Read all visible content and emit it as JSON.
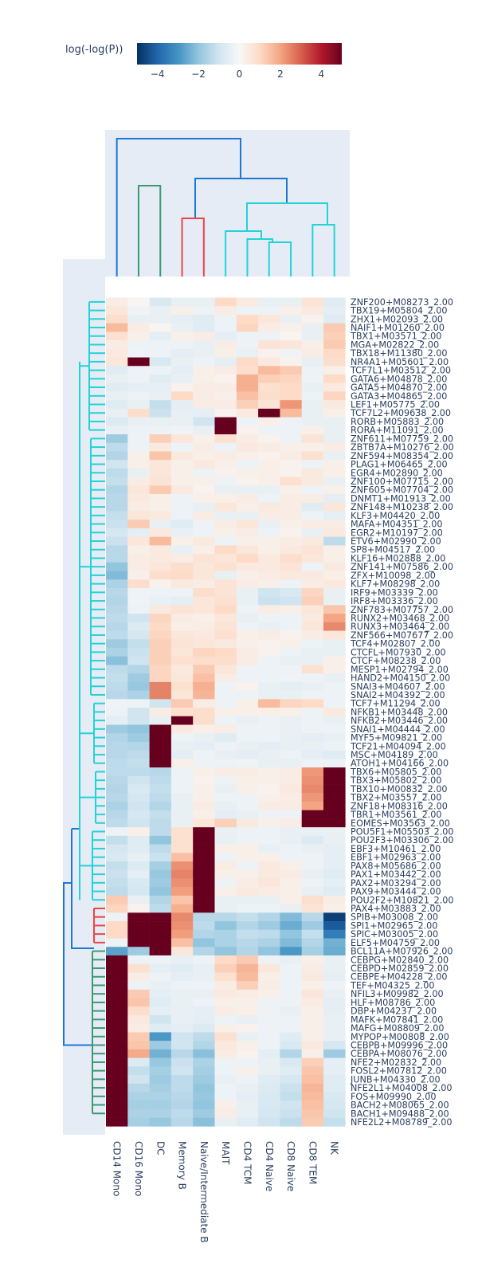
{
  "chart_data": {
    "type": "heatmap",
    "colorbar": {
      "title": "log(-log(P))",
      "range": [
        -5,
        5
      ],
      "ticks": [
        -4,
        -2,
        0,
        2,
        4
      ],
      "tick_labels": [
        "−4",
        "−2",
        "0",
        "2",
        "4"
      ],
      "colorscale": "RdBu_r",
      "colors": [
        "#053061",
        "#2166ac",
        "#4393c3",
        "#92c5de",
        "#d1e5f0",
        "#f7f7f7",
        "#fddbc7",
        "#f4a582",
        "#d6604d",
        "#b2182b",
        "#67001f"
      ]
    },
    "columns": [
      "CD14 Mono",
      "CD16 Mono",
      "DC",
      "Memory B",
      "Naive/Intermediate B",
      "MAIT",
      "CD4 TCM",
      "CD4 Naive",
      "CD8 Naive",
      "CD8 TEM",
      "NK"
    ],
    "rows": [
      "ZNF200+M08273_2.00",
      "TBX19+M05804_2.00",
      "ZHX1+M02093_2.00",
      "NAIF1+M01260_2.00",
      "TBX1+M03571_2.00",
      "MGA+M02822_2.00",
      "TBX18+M11380_2.00",
      "NR4A1+M05601_2.00",
      "TCF7L1+M03512_2.00",
      "GATA6+M04878_2.00",
      "GATA5+M04870_2.00",
      "GATA3+M04865_2.00",
      "LEF1+M05775_2.00",
      "TCF7L2+M09638_2.00",
      "RORB+M05883_2.00",
      "RORA+M11091_2.00",
      "ZNF611+M07759_2.00",
      "ZBTB7A+M10276_2.00",
      "ZNF594+M08354_2.00",
      "PLAG1+M06465_2.00",
      "EGR4+M02890_2.00",
      "ZNF100+M07715_2.00",
      "ZNF605+M07704_2.00",
      "DNMT1+M01913_2.00",
      "ZNF148+M10238_2.00",
      "KLF3+M04420_2.00",
      "MAFA+M04351_2.00",
      "EGR2+M10197_2.00",
      "ETV6+M02990_2.00",
      "SP8+M04517_2.00",
      "KLF16+M02888_2.00",
      "ZNF141+M07586_2.00",
      "ZFX+M10098_2.00",
      "KLF7+M08298_2.00",
      "IRF9+M03339_2.00",
      "IRF8+M03336_2.00",
      "ZNF783+M07757_2.00",
      "RUNX2+M03468_2.00",
      "RUNX3+M03464_2.00",
      "ZNF566+M07677_2.00",
      "TCF4+M02807_2.00",
      "CTCFL+M07930_2.00",
      "CTCF+M08238_2.00",
      "MESP1+M02794_2.00",
      "HAND2+M04150_2.00",
      "SNAI3+M04607_2.00",
      "SNAI2+M04392_2.00",
      "TCF7+M11294_2.00",
      "NFKB1+M03448_2.00",
      "NFKB2+M03446_2.00",
      "SNAI1+M04444_2.00",
      "MYF5+M09821_2.00",
      "TCF21+M04094_2.00",
      "MSC+M04189_2.00",
      "ATOH1+M04166_2.00",
      "TBX6+M05805_2.00",
      "TBX3+M05802_2.00",
      "TBX10+M00832_2.00",
      "TBX2+M03557_2.00",
      "ZNF18+M08316_2.00",
      "TBR1+M03561_2.00",
      "EOMES+M03563_2.00",
      "POU5F1+M05503_2.00",
      "POU2F3+M03306_2.00",
      "EBF3+M10461_2.00",
      "EBF1+M02963_2.00",
      "PAX8+M05686_2.00",
      "PAX1+M03442_2.00",
      "PAX2+M03294_2.00",
      "PAX9+M03444_2.00",
      "POU2F2+M10821_2.00",
      "PAX4+M03883_2.00",
      "SPIB+M03008_2.00",
      "SPI1+M02965_2.00",
      "SPIC+M03005_2.00",
      "ELF5+M04759_2.00",
      "BCL11A+M07926_2.00",
      "CEBPG+M02840_2.00",
      "CEBPD+M02859_2.00",
      "CEBPE+M04228_2.00",
      "TEF+M04325_2.00",
      "NFIL3+M09982_2.00",
      "HLF+M08786_2.00",
      "DBP+M04237_2.00",
      "MAFK+M07841_2.00",
      "MAFG+M08809_2.00",
      "MYPOP+M00808_2.00",
      "CEBPB+M09996_2.00",
      "CEBPA+M08076_2.00",
      "NFE2+M02832_2.00",
      "FOSL2+M07812_2.00",
      "JUNB+M04330_2.00",
      "NFE2L1+M04008_2.00",
      "FOS+M09990_2.00",
      "BACH2+M08065_2.00",
      "BACH1+M09488_2.00",
      "NFE2L2+M08789_2.00"
    ],
    "values": [
      [
        0.4,
        0.1,
        -0.8,
        -0.4,
        -0.4,
        1.0,
        0.5,
        -0.4,
        -0.4,
        0.7,
        -0.6
      ],
      [
        0.6,
        -0.2,
        -0.4,
        0.3,
        -0.3,
        0.4,
        -0.3,
        -0.3,
        0.3,
        0.5,
        -0.5
      ],
      [
        0.9,
        -0.4,
        -0.4,
        -0.5,
        -0.6,
        -0.3,
        1.0,
        0.6,
        -0.4,
        0.2,
        -0.6
      ],
      [
        1.6,
        0.4,
        0.1,
        -0.4,
        -0.6,
        -0.3,
        1.1,
        0.4,
        0.3,
        -0.4,
        1.3
      ],
      [
        0.8,
        0.3,
        -0.5,
        0.3,
        0.4,
        -0.5,
        -0.3,
        -0.3,
        0.1,
        -0.4,
        1.2
      ],
      [
        0.4,
        -0.3,
        -0.3,
        -0.3,
        -0.4,
        0.4,
        -0.3,
        0.7,
        0.6,
        0.3,
        1.3
      ],
      [
        0.5,
        -0.2,
        -0.3,
        -0.5,
        -0.4,
        0.3,
        -0.4,
        0.2,
        -0.2,
        0.4,
        1.0
      ],
      [
        0.6,
        5.0,
        -0.8,
        -0.4,
        -0.3,
        -0.5,
        1.0,
        0.5,
        0.2,
        -0.4,
        0.9
      ],
      [
        -0.6,
        -0.3,
        -0.3,
        -0.5,
        0.3,
        0.4,
        0.9,
        1.6,
        1.3,
        -0.3,
        0.3
      ],
      [
        -0.4,
        -0.3,
        -0.6,
        -0.4,
        0.3,
        0.2,
        1.8,
        1.2,
        1.1,
        -0.3,
        1.0
      ],
      [
        -0.6,
        -0.5,
        -0.5,
        0.2,
        0.4,
        0.4,
        1.8,
        0.8,
        1.0,
        -0.4,
        0.5
      ],
      [
        -0.4,
        -0.3,
        -0.4,
        1.0,
        0.4,
        0.3,
        1.5,
        0.9,
        1.0,
        -0.3,
        1.1
      ],
      [
        -0.6,
        -0.4,
        -1.2,
        -0.5,
        0.4,
        0.4,
        1.2,
        0.7,
        2.2,
        -0.4,
        0.5
      ],
      [
        -0.4,
        0.9,
        -1.1,
        -0.4,
        -0.5,
        0.2,
        0.5,
        5.0,
        1.6,
        -0.4,
        0.3
      ],
      [
        -0.7,
        -0.4,
        -0.4,
        -0.4,
        -1.0,
        5.0,
        -0.3,
        0.3,
        -0.3,
        -0.4,
        -0.4
      ],
      [
        -0.4,
        -0.3,
        -0.3,
        -0.2,
        -0.4,
        5.0,
        0.2,
        -0.3,
        -0.3,
        0.3,
        -0.4
      ],
      [
        -1.8,
        -0.3,
        1.2,
        0.6,
        0.3,
        0.8,
        0.4,
        0.2,
        -0.3,
        0.7,
        -0.4
      ],
      [
        -1.3,
        -0.3,
        0.5,
        -0.3,
        0.4,
        -0.3,
        0.5,
        0.4,
        0.3,
        0.3,
        0.4
      ],
      [
        -1.5,
        0.3,
        1.4,
        0.5,
        0.3,
        0.4,
        0.3,
        0.2,
        0.4,
        0.8,
        -0.4
      ],
      [
        -1.0,
        0.3,
        0.6,
        0.3,
        0.5,
        0.3,
        -0.3,
        0.3,
        0.2,
        -0.3,
        0.3
      ],
      [
        -1.3,
        -0.4,
        0.6,
        0.3,
        -0.3,
        0.2,
        0.3,
        0.3,
        0.2,
        0.5,
        0.3
      ],
      [
        -1.2,
        0.4,
        0.7,
        0.3,
        0.3,
        -0.3,
        0.2,
        0.3,
        0.8,
        0.5,
        -0.4
      ],
      [
        -1.5,
        0.6,
        1.3,
        0.5,
        0.2,
        -0.4,
        -0.4,
        -0.4,
        0.3,
        -0.3,
        0.3
      ],
      [
        -1.4,
        0.5,
        0.3,
        -0.3,
        0.3,
        0.3,
        0.4,
        -0.3,
        0.4,
        0.4,
        -0.5
      ],
      [
        -1.4,
        0.4,
        0.3,
        -0.3,
        -0.4,
        0.6,
        0.3,
        0.5,
        0.4,
        -0.6,
        0.6
      ],
      [
        -1.2,
        0.6,
        0.5,
        -0.3,
        0.4,
        -0.4,
        -0.4,
        0.4,
        0.4,
        -0.3,
        -0.5
      ],
      [
        -1.1,
        1.3,
        -0.4,
        -0.6,
        -0.3,
        0.4,
        0.6,
        -0.4,
        0.3,
        0.4,
        0.4
      ],
      [
        -0.9,
        -0.5,
        0.5,
        -0.4,
        -0.3,
        0.3,
        0.4,
        -0.3,
        0.2,
        -0.4,
        0.5
      ],
      [
        -1.1,
        0.6,
        1.6,
        0.3,
        0.5,
        -0.3,
        0.3,
        0.3,
        0.4,
        0.5,
        -1.3
      ],
      [
        -1.4,
        0.3,
        0.5,
        -0.4,
        0.3,
        1.0,
        0.6,
        0.3,
        0.5,
        0.7,
        0.3
      ],
      [
        -1.4,
        0.4,
        0.5,
        0.4,
        0.7,
        0.6,
        1.0,
        0.5,
        0.9,
        0.6,
        0.3
      ],
      [
        -2.0,
        0.4,
        0.6,
        0.9,
        0.6,
        0.8,
        0.5,
        0.5,
        0.7,
        -0.3,
        0.5
      ],
      [
        -2.2,
        0.3,
        0.9,
        1.0,
        0.6,
        -0.4,
        0.3,
        0.4,
        0.5,
        0.5,
        0.3
      ],
      [
        -1.6,
        0.9,
        0.2,
        0.5,
        0.4,
        0.7,
        0.4,
        0.3,
        -0.3,
        0.4,
        0.5
      ],
      [
        -1.4,
        -0.2,
        -0.3,
        -0.3,
        0.9,
        0.7,
        -0.4,
        -1.0,
        -0.8,
        1.1,
        -0.4
      ],
      [
        -1.5,
        -0.2,
        -0.4,
        -0.5,
        0.6,
        0.8,
        -0.4,
        -1.1,
        -1.0,
        1.2,
        -0.4
      ],
      [
        -1.4,
        -0.3,
        0.5,
        0.7,
        0.6,
        1.0,
        -0.3,
        0.4,
        0.3,
        0.6,
        1.4
      ],
      [
        -1.3,
        -1.0,
        1.1,
        0.4,
        0.3,
        0.6,
        -0.4,
        -0.3,
        -0.3,
        0.5,
        2.0
      ],
      [
        -1.4,
        -0.7,
        1.0,
        0.3,
        0.4,
        0.7,
        -0.3,
        -0.4,
        -0.3,
        0.6,
        2.4
      ],
      [
        -1.3,
        -0.9,
        1.1,
        0.6,
        0.5,
        0.8,
        0.3,
        0.4,
        0.2,
        0.4,
        0.6
      ],
      [
        -1.8,
        -1.2,
        1.2,
        0.7,
        0.6,
        0.5,
        0.3,
        0.2,
        0.3,
        -0.3,
        -0.4
      ],
      [
        -1.6,
        -1.1,
        1.2,
        0.6,
        1.1,
        1.0,
        0.4,
        0.2,
        -0.3,
        -0.4,
        -0.4
      ],
      [
        -2.1,
        -1.0,
        1.2,
        0.8,
        0.9,
        0.9,
        0.4,
        -0.3,
        -0.4,
        -0.4,
        0.3
      ],
      [
        -1.3,
        -1.5,
        1.1,
        0.5,
        1.3,
        0.6,
        -0.3,
        -0.3,
        -0.3,
        0.8,
        0.3
      ],
      [
        -1.2,
        -1.8,
        1.1,
        0.6,
        1.5,
        0.4,
        -0.3,
        -0.3,
        -0.2,
        -0.3,
        -0.4
      ],
      [
        -1.3,
        -1.9,
        2.5,
        0.8,
        1.8,
        -0.3,
        0.2,
        -0.4,
        -0.5,
        -0.4,
        -0.3
      ],
      [
        -1.4,
        -1.6,
        2.5,
        0.6,
        1.7,
        -0.3,
        -0.3,
        -0.4,
        -0.4,
        -0.3,
        -0.3
      ],
      [
        -0.2,
        -0.3,
        -1.0,
        1.3,
        0.4,
        -0.3,
        0.3,
        1.6,
        1.1,
        1.0,
        -0.3
      ],
      [
        -0.3,
        -1.0,
        0.4,
        0.8,
        0.9,
        0.3,
        0.3,
        0.3,
        0.3,
        -0.3,
        0.5
      ],
      [
        -0.5,
        -1.0,
        -0.4,
        5.0,
        0.9,
        -0.3,
        -0.4,
        -0.3,
        -0.4,
        -0.3,
        -0.4
      ],
      [
        -1.8,
        -2.0,
        5.0,
        0.5,
        0.3,
        0.4,
        -0.3,
        -0.3,
        -0.4,
        -0.3,
        -0.3
      ],
      [
        -1.5,
        -1.8,
        5.0,
        -0.3,
        -0.4,
        -0.6,
        -0.3,
        -0.3,
        -0.4,
        -0.5,
        -0.4
      ],
      [
        -1.4,
        -1.5,
        5.0,
        -0.4,
        -0.5,
        -0.3,
        -0.4,
        -0.5,
        -0.4,
        -0.4,
        -0.3
      ],
      [
        -1.4,
        -1.3,
        5.0,
        -0.5,
        -0.3,
        -0.4,
        -0.5,
        -0.4,
        -0.3,
        -0.5,
        -0.6
      ],
      [
        -1.3,
        -1.2,
        5.0,
        0.3,
        -0.3,
        -0.3,
        -0.2,
        -0.4,
        -0.4,
        -0.3,
        -0.3
      ],
      [
        -1.3,
        -1.3,
        -1.4,
        -0.3,
        0.3,
        0.4,
        0.4,
        0.3,
        0.4,
        2.2,
        5.0
      ],
      [
        -1.4,
        -1.0,
        -1.3,
        -0.3,
        0.2,
        -0.3,
        0.3,
        0.3,
        0.4,
        2.3,
        5.0
      ],
      [
        -1.5,
        -0.8,
        -1.2,
        -0.3,
        0.3,
        -0.4,
        0.3,
        0.2,
        0.5,
        2.4,
        5.0
      ],
      [
        -1.4,
        -0.9,
        -1.3,
        -0.4,
        0.3,
        -0.3,
        -0.3,
        0.3,
        0.4,
        2.2,
        5.0
      ],
      [
        -1.6,
        -1.0,
        -1.5,
        -0.4,
        0.4,
        -0.4,
        -0.3,
        0.4,
        0.4,
        2.0,
        5.0
      ],
      [
        -1.4,
        -0.9,
        -1.2,
        -0.4,
        0.3,
        -0.5,
        -0.4,
        -0.3,
        -0.3,
        5.0,
        5.0
      ],
      [
        -1.3,
        -1.0,
        -1.3,
        -0.4,
        0.6,
        1.2,
        0.5,
        0.3,
        0.4,
        5.0,
        5.0
      ],
      [
        -0.3,
        0.3,
        -1.3,
        0.8,
        5.0,
        -0.4,
        -0.3,
        -0.3,
        -0.4,
        -0.4,
        -0.4
      ],
      [
        -1.2,
        -0.6,
        -2.0,
        0.8,
        5.0,
        -0.4,
        -0.3,
        -0.3,
        -0.4,
        -0.7,
        -0.4
      ],
      [
        -0.9,
        -0.6,
        -1.3,
        0.8,
        5.0,
        0.3,
        0.3,
        -0.4,
        -0.3,
        -0.4,
        -0.5
      ],
      [
        -0.8,
        -0.4,
        -1.1,
        1.5,
        5.0,
        -0.3,
        0.3,
        0.3,
        -0.3,
        -0.3,
        -0.5
      ],
      [
        -1.2,
        -0.7,
        -1.7,
        2.3,
        5.0,
        0.4,
        -0.3,
        0.5,
        0.3,
        -0.3,
        -0.5
      ],
      [
        -1.1,
        -0.5,
        -1.9,
        2.5,
        5.0,
        0.3,
        0.3,
        0.5,
        0.4,
        -0.4,
        -0.6
      ],
      [
        -1.2,
        -0.8,
        -1.8,
        2.3,
        5.0,
        -0.3,
        0.4,
        0.6,
        0.3,
        -0.3,
        -0.5
      ],
      [
        -1.3,
        -0.9,
        -2.0,
        2.1,
        5.0,
        0.3,
        0.5,
        0.4,
        0.3,
        -0.4,
        -0.6
      ],
      [
        1.3,
        -0.4,
        -1.5,
        1.4,
        5.0,
        -0.4,
        -0.4,
        -0.4,
        0.3,
        0.9,
        0.4
      ],
      [
        1.1,
        0.2,
        -1.3,
        1.8,
        5.0,
        -0.4,
        -0.3,
        -0.3,
        -0.4,
        0.7,
        0.3
      ],
      [
        -0.3,
        5.0,
        5.0,
        2.4,
        -1.4,
        -1.4,
        -1.2,
        -1.5,
        -2.2,
        -1.4,
        -4.7
      ],
      [
        1.0,
        5.0,
        5.0,
        2.3,
        -1.3,
        -2.0,
        -1.5,
        -1.8,
        -2.5,
        -1.8,
        -4.2
      ],
      [
        1.0,
        5.0,
        5.0,
        2.1,
        -1.5,
        -1.6,
        -1.2,
        -1.3,
        -2.0,
        -1.2,
        -3.5
      ],
      [
        -0.3,
        5.0,
        5.0,
        1.5,
        -2.0,
        -1.6,
        -1.4,
        -1.6,
        -2.2,
        -1.5,
        -2.4
      ],
      [
        -2.7,
        -1.8,
        5.0,
        0.6,
        -1.5,
        -2.0,
        -1.5,
        -2.0,
        -2.9,
        -1.7,
        -2.5
      ],
      [
        5.0,
        -0.3,
        -0.3,
        -0.4,
        -0.3,
        1.0,
        1.3,
        -0.3,
        -0.4,
        0.3,
        -0.4
      ],
      [
        5.0,
        0.8,
        -0.5,
        -0.6,
        -0.4,
        1.2,
        1.7,
        0.6,
        -0.3,
        0.4,
        -0.4
      ],
      [
        5.0,
        0.4,
        -0.3,
        -0.5,
        -0.4,
        0.8,
        1.6,
        0.3,
        -0.3,
        0.5,
        -0.5
      ],
      [
        5.0,
        -0.3,
        -0.4,
        -0.3,
        -0.3,
        0.4,
        1.2,
        0.4,
        -0.3,
        0.3,
        -0.3
      ],
      [
        5.0,
        1.3,
        -0.5,
        -0.4,
        -0.4,
        0.5,
        0.4,
        0.3,
        -0.3,
        0.6,
        -0.4
      ],
      [
        5.0,
        1.4,
        -0.6,
        -0.4,
        -0.3,
        0.3,
        0.3,
        -0.3,
        -0.3,
        0.4,
        -0.5
      ],
      [
        5.0,
        0.9,
        -0.5,
        -0.4,
        -0.5,
        0.4,
        0.3,
        -0.3,
        -0.4,
        0.3,
        -0.5
      ],
      [
        5.0,
        0.5,
        -1.0,
        -0.4,
        -0.5,
        -0.3,
        -0.4,
        -0.3,
        -0.3,
        0.3,
        -0.4
      ],
      [
        5.0,
        0.4,
        -0.6,
        -0.5,
        -0.7,
        0.3,
        0.2,
        -0.3,
        -0.3,
        0.3,
        -0.4
      ],
      [
        5.0,
        1.3,
        -2.9,
        -1.0,
        -1.3,
        0.8,
        -0.4,
        -0.3,
        -0.6,
        0.3,
        -0.4
      ],
      [
        5.0,
        1.4,
        -1.8,
        -1.0,
        -1.5,
        0.5,
        0.3,
        -0.3,
        -0.8,
        0.5,
        -0.9
      ],
      [
        5.0,
        1.9,
        -2.4,
        -1.4,
        -2.1,
        0.4,
        0.2,
        -0.5,
        -1.5,
        0.3,
        -1.8
      ],
      [
        5.0,
        -0.7,
        -1.9,
        -1.1,
        -1.6,
        -0.3,
        -0.3,
        -0.4,
        -0.8,
        1.2,
        -0.5
      ],
      [
        5.0,
        -1.2,
        -1.7,
        -1.0,
        -1.7,
        -0.3,
        0.3,
        -0.4,
        -0.6,
        1.4,
        -0.5
      ],
      [
        5.0,
        -1.0,
        -1.8,
        -1.3,
        -1.8,
        -0.4,
        -0.3,
        -0.6,
        -0.9,
        1.5,
        -0.6
      ],
      [
        5.0,
        -1.4,
        -1.7,
        -1.3,
        -2.0,
        -0.3,
        -0.4,
        -0.7,
        -1.1,
        1.7,
        -0.6
      ],
      [
        5.0,
        -1.6,
        -1.6,
        -1.4,
        -1.9,
        -0.3,
        -0.5,
        -0.8,
        -1.2,
        1.6,
        -0.8
      ],
      [
        5.0,
        -1.7,
        -1.7,
        -1.5,
        -2.0,
        0.3,
        -0.4,
        -0.8,
        -1.0,
        1.5,
        -0.9
      ],
      [
        5.0,
        -1.6,
        -1.6,
        -1.3,
        -1.8,
        0.4,
        -0.4,
        -0.9,
        -1.1,
        1.4,
        -1.0
      ],
      [
        5.0,
        -1.7,
        -1.9,
        -1.4,
        -2.1,
        -0.4,
        -0.6,
        -1.0,
        -1.3,
        1.3,
        -1.2
      ]
    ],
    "dendrogram_colors": {
      "top_root": "#1f77d4",
      "green": "#3d9970",
      "red": "#ef4444",
      "cyan": "#22d3d6",
      "left_root": "#1f77d4"
    },
    "plot_bgcolor": "#e5ecf6"
  }
}
